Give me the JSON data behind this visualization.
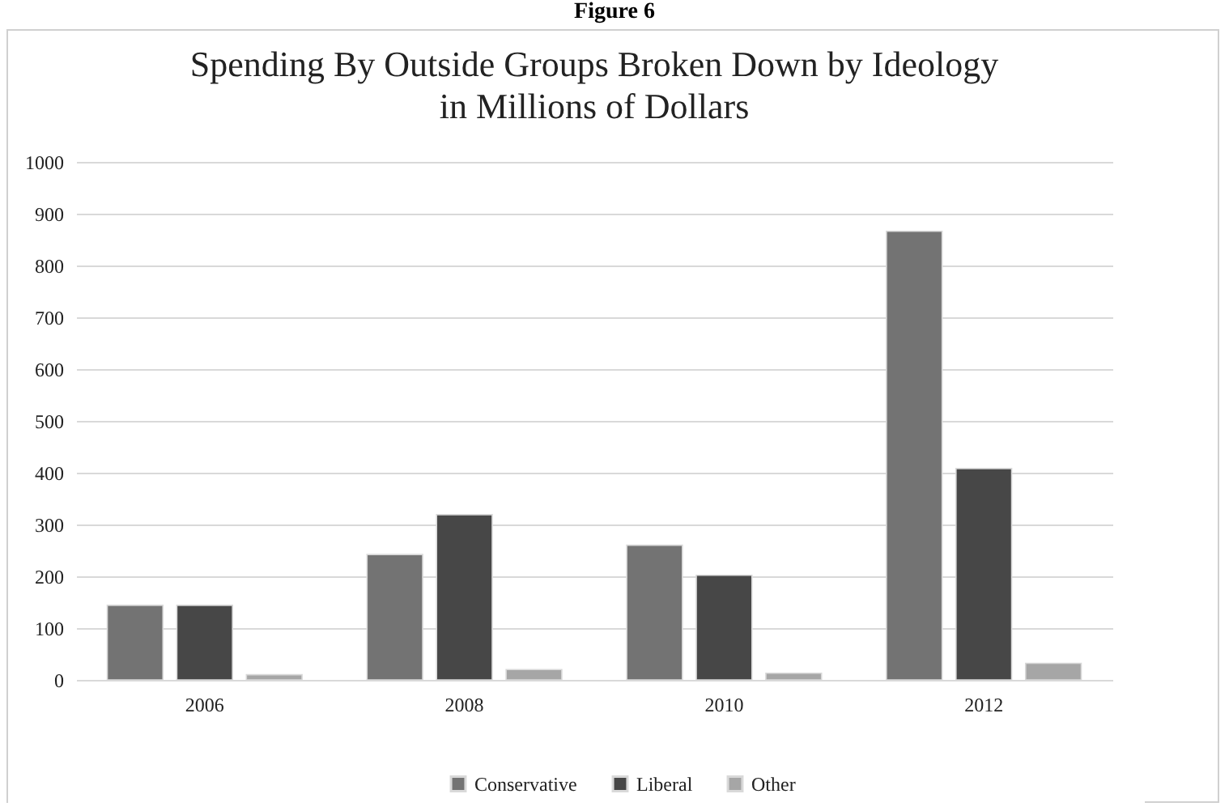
{
  "chart_data": {
    "type": "bar",
    "title": "Spending By Outside Groups Broken Down by Ideology\nin Millions of Dollars",
    "annotations": [
      "Figure 6"
    ],
    "categories": [
      "2006",
      "2008",
      "2010",
      "2012"
    ],
    "series": [
      {
        "name": "Conservative",
        "color": "#737373",
        "values": [
          144,
          242,
          260,
          866
        ]
      },
      {
        "name": "Liberal",
        "color": "#474747",
        "values": [
          144,
          319,
          202,
          408
        ]
      },
      {
        "name": "Other",
        "color": "#a6a6a6",
        "values": [
          10,
          20,
          13,
          32
        ]
      }
    ],
    "ylim": [
      0,
      1000
    ],
    "yticks": [
      0,
      100,
      200,
      300,
      400,
      500,
      600,
      700,
      800,
      900,
      1000
    ],
    "grid": "y",
    "legend": "bottom"
  }
}
